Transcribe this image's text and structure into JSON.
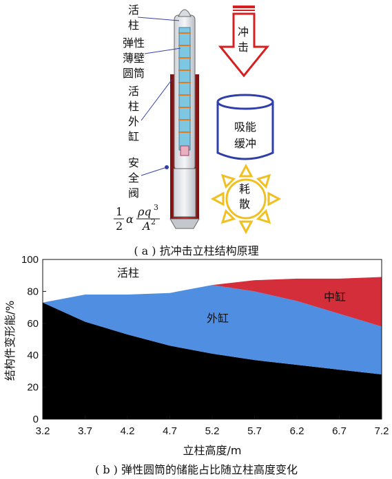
{
  "part_a": {
    "labels": [
      "活柱",
      "弹性薄壁圆筒",
      "活柱外缸",
      "安全阀"
    ],
    "energy_formula": {
      "prefix_num": "1",
      "prefix_den": "2",
      "alpha": "α",
      "numerator": "ρq",
      "num_exp": "3",
      "denominator": "A",
      "den_exp": "2"
    },
    "impact_label": "冲击",
    "absorb_label": "吸能缓冲",
    "dissipate_label": "耗散",
    "caption": "( a ) 抗冲击立柱结构原理",
    "colors": {
      "piston_inner": "#7fc6e0",
      "outer_cylinder": "#b32020",
      "arrow": "#d62020",
      "buffer": "#2f3ea8",
      "sun": "#f0c020"
    }
  },
  "part_b": {
    "caption": "( b ) 弹性圆筒的储能占比随立柱高度变化",
    "region_labels": {
      "piston": "活柱",
      "outer": "外缸",
      "middle": "中缸"
    },
    "colors": {
      "piston": "#000000",
      "outer": "#4f8ee0",
      "middle": "#d42e3a",
      "background": "#ffffff"
    }
  },
  "chart_data": {
    "type": "area",
    "xlabel": "立柱高度/m",
    "ylabel": "结构件变形能/%",
    "xlim": [
      3.2,
      7.2
    ],
    "ylim": [
      0,
      100
    ],
    "x_ticks": [
      "3.2",
      "3.7",
      "4.2",
      "4.7",
      "5.2",
      "5.7",
      "6.2",
      "6.7",
      "7.2"
    ],
    "y_ticks": [
      "0",
      "20",
      "40",
      "60",
      "80",
      "100"
    ],
    "x": [
      3.2,
      3.7,
      4.2,
      4.7,
      5.2,
      5.7,
      6.2,
      6.7,
      7.2
    ],
    "series": [
      {
        "name": "活柱",
        "values": [
          73,
          61,
          53,
          46,
          41,
          37,
          34,
          31,
          28
        ]
      },
      {
        "name": "外缸",
        "values": [
          0,
          17,
          25,
          33,
          43,
          43,
          40,
          35,
          30
        ]
      },
      {
        "name": "中缸",
        "values": [
          0,
          0,
          0,
          0,
          0,
          7,
          14,
          22,
          31
        ]
      }
    ]
  }
}
